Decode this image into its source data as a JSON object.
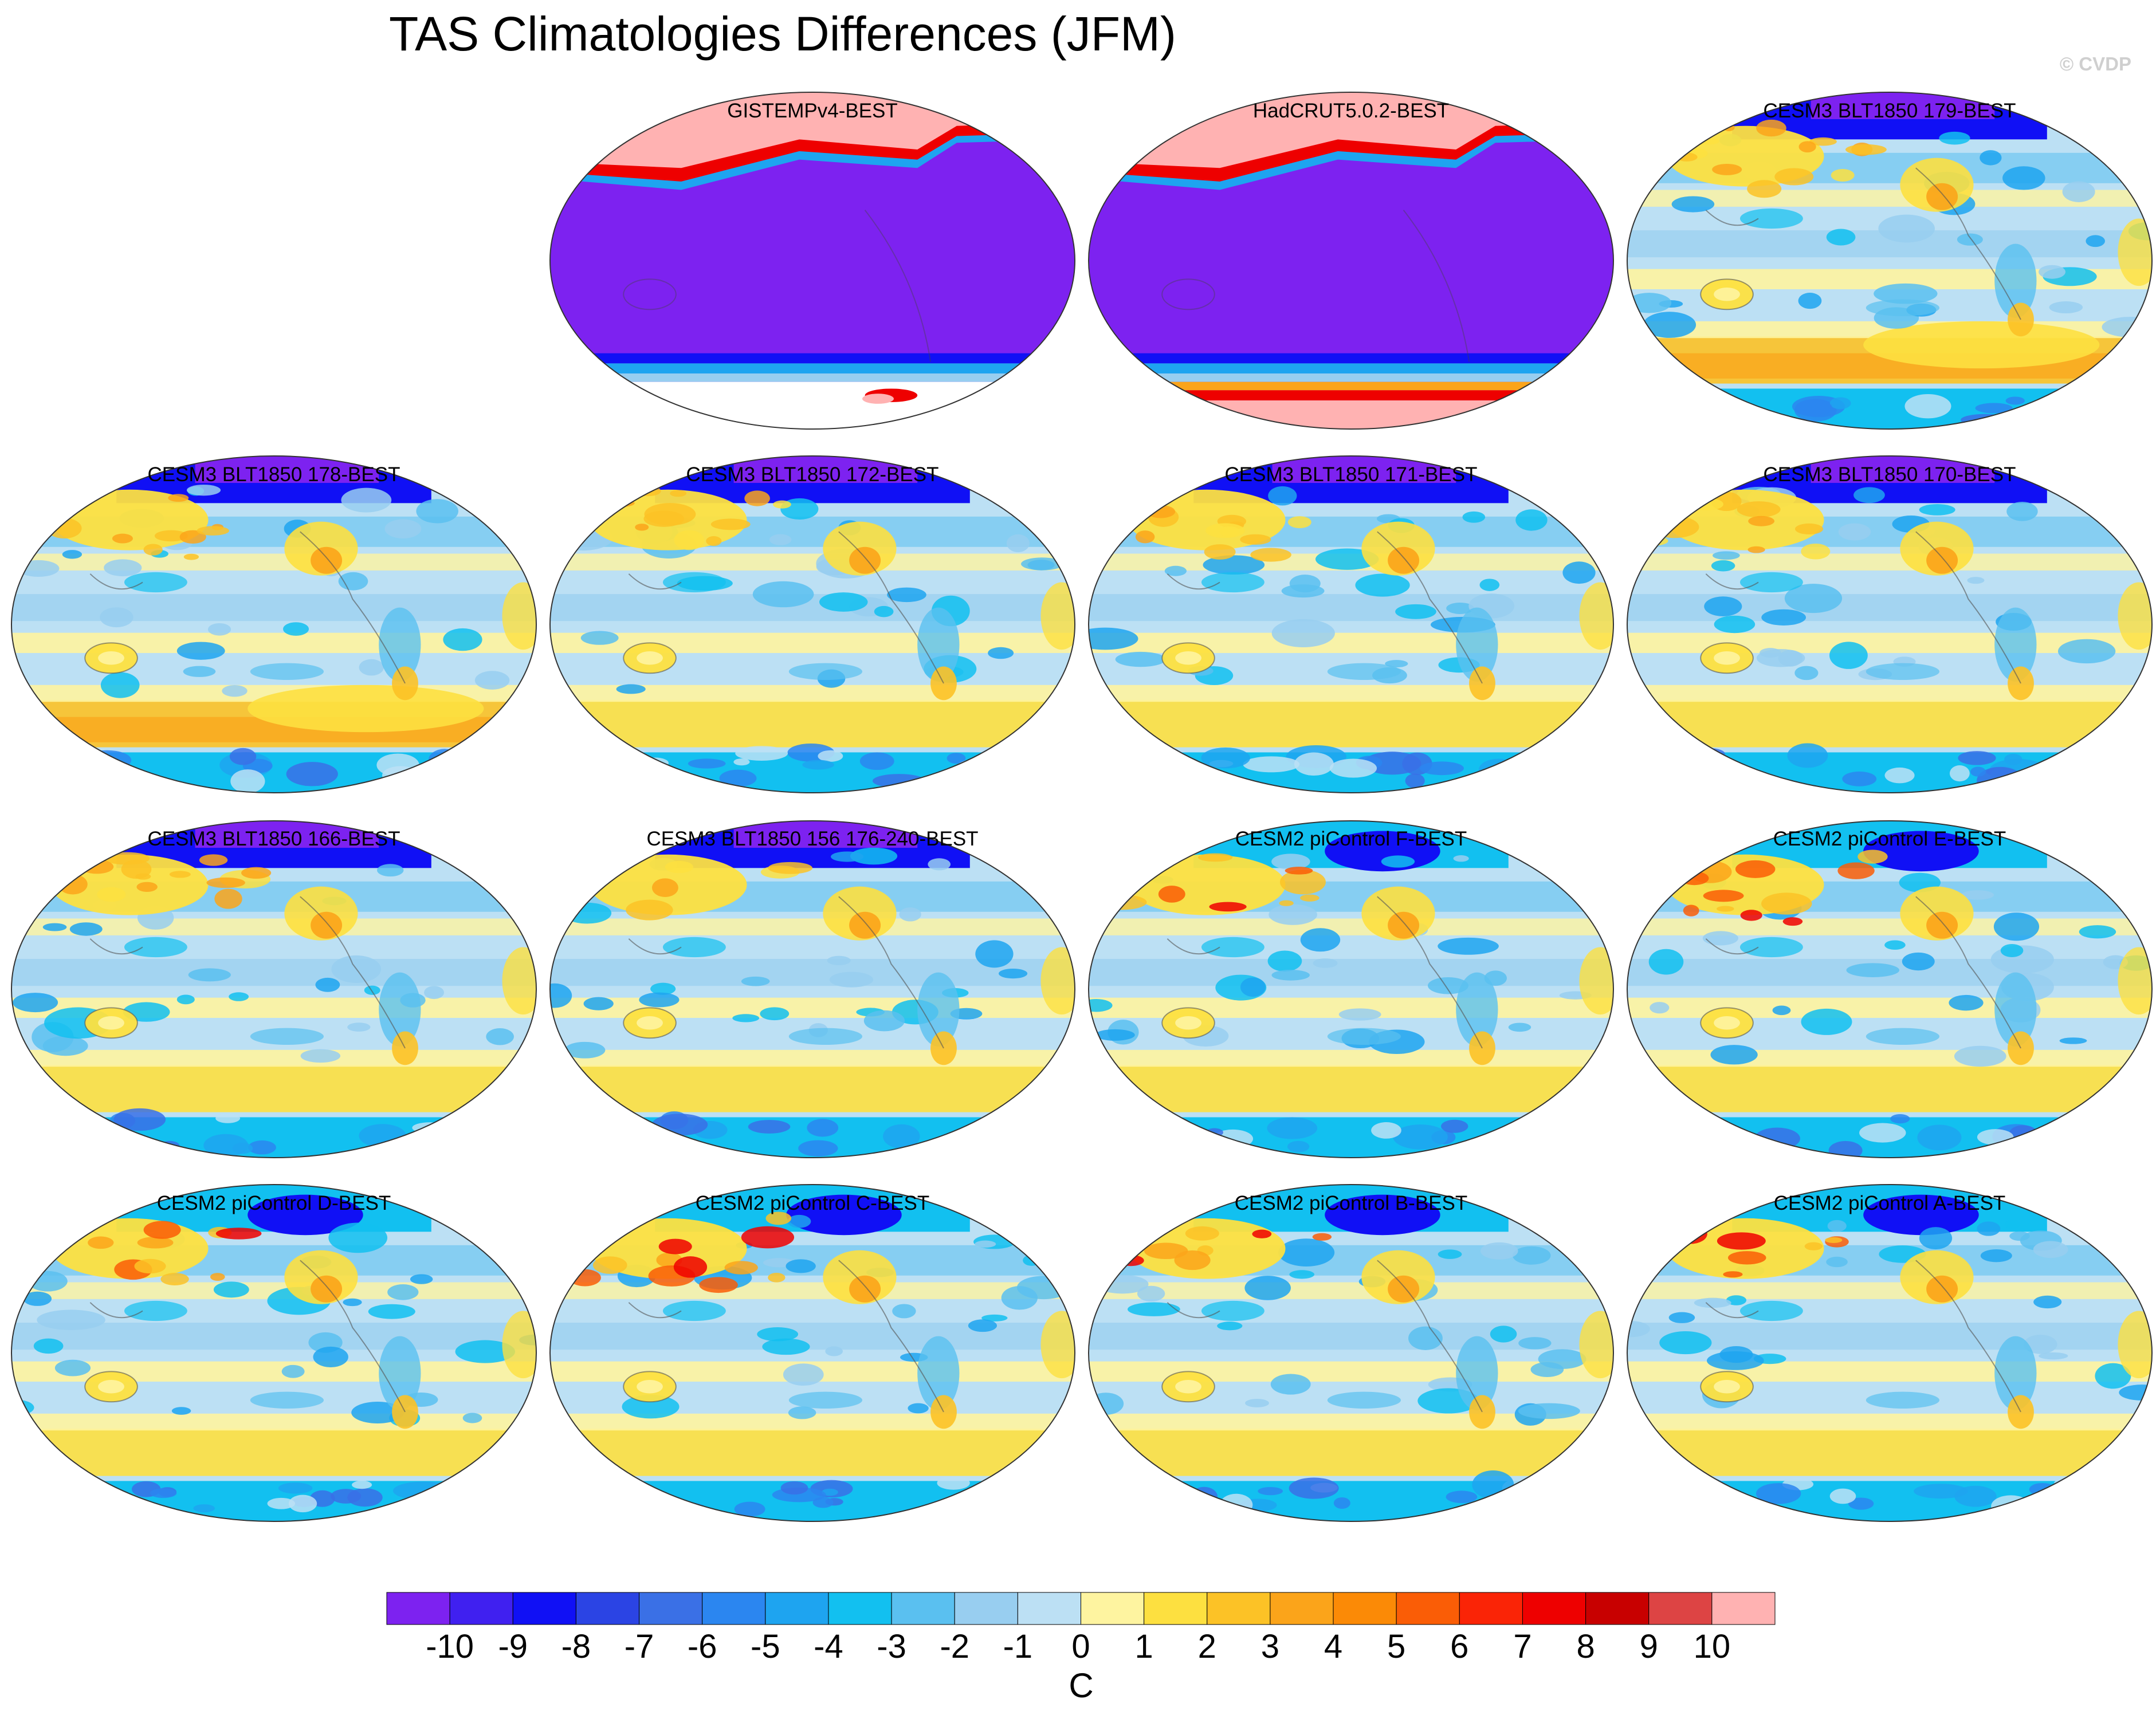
{
  "figure": {
    "title": "TAS Climatologies Differences (JFM)",
    "watermark": "© CVDP"
  },
  "panels": [
    {
      "label": "GISTEMPv4-BEST",
      "kind": "obs_gistemp"
    },
    {
      "label": "HadCRUT5.0.2-BEST",
      "kind": "obs_hadcrut"
    },
    {
      "label": "CESM3 BLT1850 179-BEST",
      "kind": "cesm3_warm"
    },
    {
      "label": "CESM3 BLT1850 178-BEST",
      "kind": "cesm3_warm"
    },
    {
      "label": "CESM3 BLT1850 172-BEST",
      "kind": "cesm3"
    },
    {
      "label": "CESM3 BLT1850 171-BEST",
      "kind": "cesm3"
    },
    {
      "label": "CESM3 BLT1850 170-BEST",
      "kind": "cesm3"
    },
    {
      "label": "CESM3 BLT1850 166-BEST",
      "kind": "cesm3"
    },
    {
      "label": "CESM3 BLT1850 156 176-240-BEST",
      "kind": "cesm3"
    },
    {
      "label": "CESM2 piControl F-BEST",
      "kind": "cesm2"
    },
    {
      "label": "CESM2 piControl E-BEST",
      "kind": "cesm2"
    },
    {
      "label": "CESM2 piControl D-BEST",
      "kind": "cesm2"
    },
    {
      "label": "CESM2 piControl C-BEST",
      "kind": "cesm2"
    },
    {
      "label": "CESM2 piControl B-BEST",
      "kind": "cesm2"
    },
    {
      "label": "CESM2 piControl A-BEST",
      "kind": "cesm2"
    }
  ],
  "colorbar": {
    "unit": "C",
    "tick_labels": [
      "-10",
      "-9",
      "-8",
      "-7",
      "-6",
      "-5",
      "-4",
      "-3",
      "-2",
      "-1",
      "0",
      "1",
      "2",
      "3",
      "4",
      "5",
      "6",
      "7",
      "8",
      "9",
      "10"
    ],
    "colors": [
      "#7d22f0",
      "#4020f0",
      "#1010f5",
      "#2b44e4",
      "#3a70e6",
      "#2b86f0",
      "#1ea4f0",
      "#12c0f0",
      "#5ac0f0",
      "#98cef0",
      "#bce0f4",
      "#fef4a0",
      "#fde040",
      "#fcc226",
      "#fba41a",
      "#fb8a06",
      "#fa5d06",
      "#fa2406",
      "#ee0000",
      "#c80000",
      "#dd4444",
      "#ffb2b2"
    ]
  }
}
